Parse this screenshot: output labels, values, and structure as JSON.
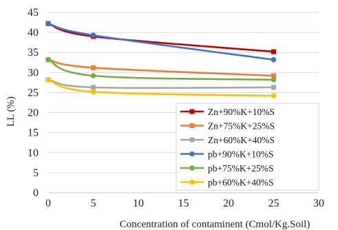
{
  "chart_data": {
    "type": "line",
    "title": "",
    "xlabel": "Concentration of contaminent (Cmol/Kg.Soil)",
    "ylabel": "LL (%)",
    "xlim": [
      0,
      30
    ],
    "ylim": [
      0,
      45
    ],
    "xticks": [
      0,
      5,
      10,
      15,
      20,
      25,
      30
    ],
    "yticks": [
      0,
      5,
      10,
      15,
      20,
      25,
      30,
      35,
      40,
      45
    ],
    "grid": "horizontal",
    "legend_position": "bottom-right",
    "x": [
      0,
      5,
      25
    ],
    "series": [
      {
        "name": "Zn+90%K+10%S",
        "values": [
          42.2,
          39.0,
          35.2
        ],
        "color": "#c00000",
        "marker": "square"
      },
      {
        "name": "Zn+75%K+25%S",
        "values": [
          33.2,
          31.2,
          29.2
        ],
        "color": "#ed7d31",
        "marker": "square"
      },
      {
        "name": "Zn+60%K+40%S",
        "values": [
          28.2,
          26.3,
          26.3
        ],
        "color": "#a5a5a5",
        "marker": "square"
      },
      {
        "name": "pb+90%K+10%S",
        "values": [
          42.2,
          39.3,
          33.2
        ],
        "color": "#4472c4",
        "marker": "circle"
      },
      {
        "name": "pb+75%K+25%S",
        "values": [
          33.2,
          29.2,
          28.2
        ],
        "color": "#70ad47",
        "marker": "circle"
      },
      {
        "name": "pb+60%K+40%S",
        "values": [
          28.2,
          25.2,
          24.2
        ],
        "color": "#ffc000",
        "marker": "circle"
      }
    ]
  }
}
